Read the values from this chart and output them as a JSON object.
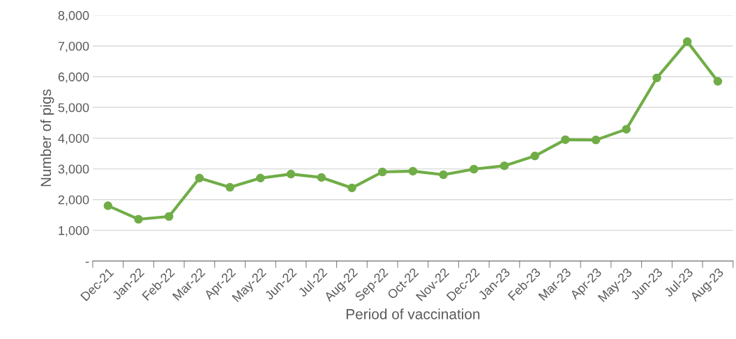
{
  "chart_data": {
    "type": "line",
    "xlabel": "Period of vaccination",
    "ylabel": "Number of pigs",
    "categories": [
      "Dec-21",
      "Jan-22",
      "Feb-22",
      "Mar-22",
      "Apr-22",
      "May-22",
      "Jun-22",
      "Jul-22",
      "Aug-22",
      "Sep-22",
      "Oct-22",
      "Nov-22",
      "Dec-22",
      "Jan-23",
      "Feb-23",
      "Mar-23",
      "Apr-23",
      "May-23",
      "Jun-23",
      "Jul-23",
      "Aug-23"
    ],
    "series": [
      {
        "color": "#70ad47",
        "values": [
          1800,
          1360,
          1450,
          2700,
          2400,
          2700,
          2830,
          2720,
          2380,
          2900,
          2925,
          2810,
          2990,
          3100,
          3420,
          3950,
          3940,
          4290,
          5960,
          7140,
          5850
        ]
      }
    ],
    "ylim": [
      0,
      8000
    ],
    "yticks": [
      {
        "value": 0,
        "label": "-"
      },
      {
        "value": 1000,
        "label": "1,000"
      },
      {
        "value": 2000,
        "label": "2,000"
      },
      {
        "value": 3000,
        "label": "3,000"
      },
      {
        "value": 4000,
        "label": "4,000"
      },
      {
        "value": 5000,
        "label": "5,000"
      },
      {
        "value": 6000,
        "label": "6,000"
      },
      {
        "value": 7000,
        "label": "7,000"
      },
      {
        "value": 8000,
        "label": "8,000"
      }
    ],
    "grid": "y",
    "marker": "circle",
    "line_style": "solid",
    "legend": false
  }
}
